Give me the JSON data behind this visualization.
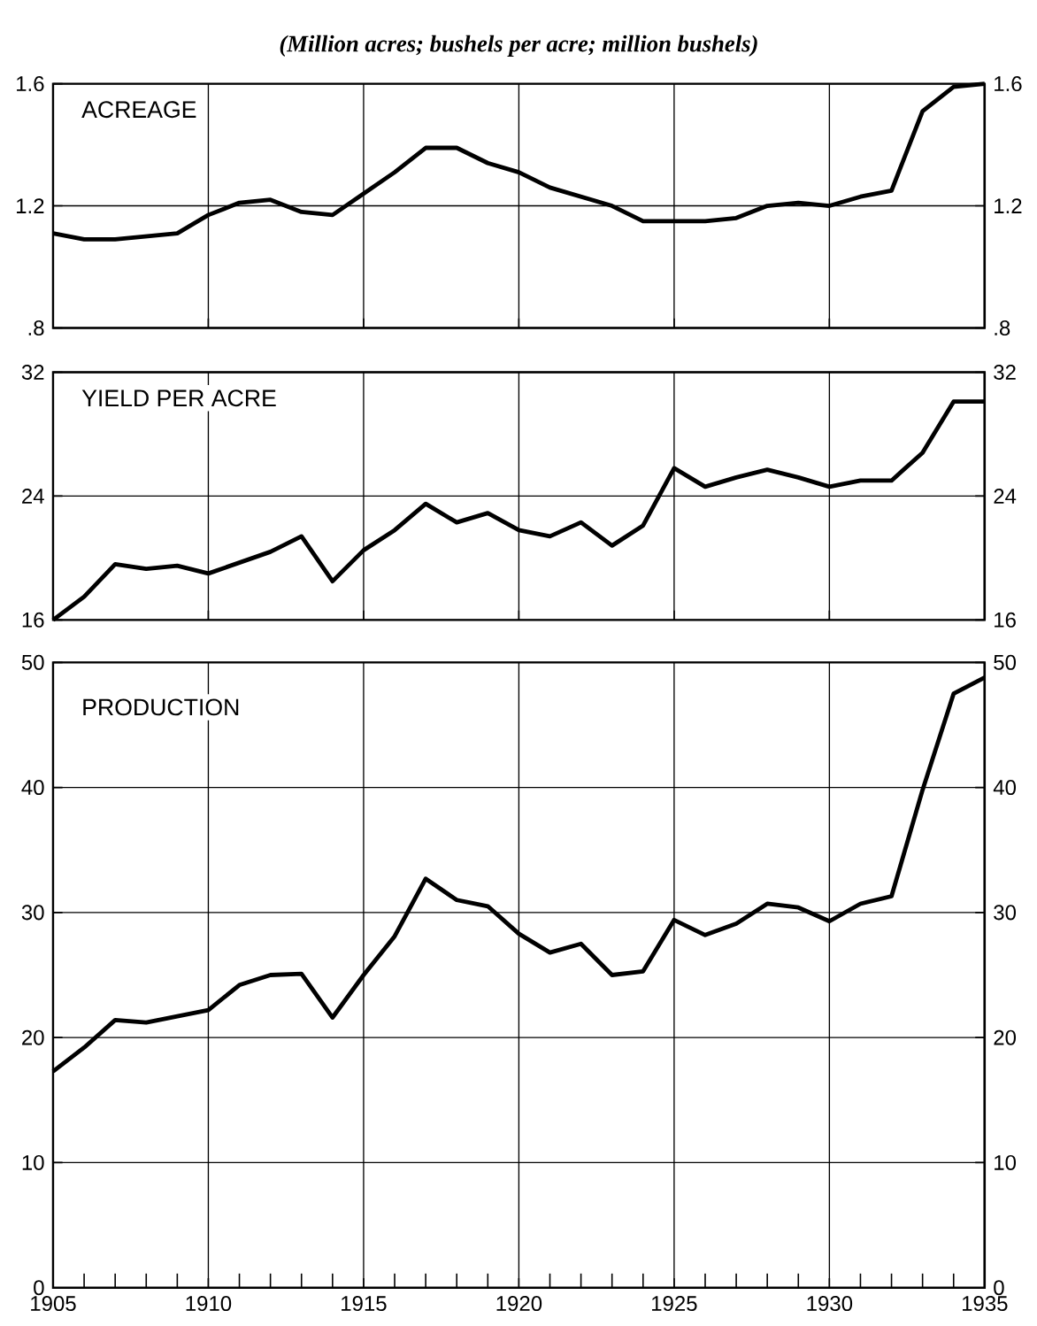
{
  "chart_data": [
    {
      "type": "line",
      "title": "ACREAGE",
      "annotations": [
        "(Million acres; bushels per acre; million bushels)"
      ],
      "x": [
        1905,
        1906,
        1907,
        1908,
        1909,
        1910,
        1911,
        1912,
        1913,
        1914,
        1915,
        1916,
        1917,
        1918,
        1919,
        1920,
        1921,
        1922,
        1923,
        1924,
        1925,
        1926,
        1927,
        1928,
        1929,
        1930,
        1931,
        1932,
        1933,
        1934,
        1935
      ],
      "series": [
        {
          "color": "#000000",
          "values": [
            1.11,
            1.09,
            1.09,
            1.1,
            1.11,
            1.17,
            1.21,
            1.22,
            1.18,
            1.17,
            1.24,
            1.31,
            1.39,
            1.39,
            1.34,
            1.31,
            1.26,
            1.23,
            1.2,
            1.15,
            1.15,
            1.15,
            1.16,
            1.2,
            1.21,
            1.2,
            1.23,
            1.25,
            1.51,
            1.59,
            1.6
          ]
        }
      ],
      "xlim": [
        1905,
        1935
      ],
      "xticks": [
        1905,
        1910,
        1915,
        1920,
        1925,
        1930,
        1935
      ],
      "ylim": [
        0.8,
        1.6
      ],
      "yticks": [
        {
          "value": 0.8,
          "label": ".8"
        },
        1.2,
        1.6
      ],
      "y2lim": [
        0.8,
        1.6
      ],
      "y2ticks": [
        {
          "value": 0.8,
          "label": ".8"
        },
        1.2,
        1.6
      ],
      "grid": true,
      "tick_labels": "y"
    },
    {
      "type": "line",
      "title": "YIELD PER ACRE",
      "x": [
        1905,
        1906,
        1907,
        1908,
        1909,
        1910,
        1911,
        1912,
        1913,
        1914,
        1915,
        1916,
        1917,
        1918,
        1919,
        1920,
        1921,
        1922,
        1923,
        1924,
        1925,
        1926,
        1927,
        1928,
        1929,
        1930,
        1931,
        1932,
        1933,
        1934,
        1935
      ],
      "series": [
        {
          "color": "#000000",
          "values": [
            16.0,
            17.5,
            19.6,
            19.3,
            19.5,
            19.0,
            19.7,
            20.4,
            21.4,
            18.5,
            20.5,
            21.8,
            23.5,
            22.3,
            22.9,
            21.8,
            21.4,
            22.3,
            20.8,
            22.1,
            25.8,
            24.6,
            25.2,
            25.7,
            25.2,
            24.6,
            25.0,
            25.0,
            26.8,
            30.1,
            30.1
          ]
        }
      ],
      "xlim": [
        1905,
        1935
      ],
      "xticks": [
        1905,
        1910,
        1915,
        1920,
        1925,
        1930,
        1935
      ],
      "ylim": [
        16,
        32
      ],
      "yticks": [
        16,
        24,
        32
      ],
      "y2lim": [
        16,
        32
      ],
      "y2ticks": [
        16,
        24,
        32
      ],
      "grid": true,
      "tick_labels": "y"
    },
    {
      "type": "line",
      "title": "PRODUCTION",
      "x": [
        1905,
        1906,
        1907,
        1908,
        1909,
        1910,
        1911,
        1912,
        1913,
        1914,
        1915,
        1916,
        1917,
        1918,
        1919,
        1920,
        1921,
        1922,
        1923,
        1924,
        1925,
        1926,
        1927,
        1928,
        1929,
        1930,
        1931,
        1932,
        1933,
        1934,
        1935
      ],
      "series": [
        {
          "color": "#000000",
          "values": [
            17.3,
            19.2,
            21.4,
            21.2,
            21.7,
            22.2,
            24.2,
            25.0,
            25.1,
            21.6,
            25.0,
            28.1,
            32.7,
            31.0,
            30.5,
            28.3,
            26.8,
            27.5,
            25.0,
            25.3,
            29.4,
            28.2,
            29.1,
            30.7,
            30.4,
            29.3,
            30.7,
            31.3,
            39.8,
            47.5,
            48.8
          ]
        }
      ],
      "xlim": [
        1905,
        1935
      ],
      "xticks": [
        1905,
        {
          "value": 1906,
          "label": null
        },
        {
          "value": 1907,
          "label": null
        },
        {
          "value": 1908,
          "label": null
        },
        {
          "value": 1909,
          "label": null
        },
        1910,
        {
          "value": 1911,
          "label": null
        },
        {
          "value": 1912,
          "label": null
        },
        {
          "value": 1913,
          "label": null
        },
        {
          "value": 1914,
          "label": null
        },
        1915,
        {
          "value": 1916,
          "label": null
        },
        {
          "value": 1917,
          "label": null
        },
        {
          "value": 1918,
          "label": null
        },
        {
          "value": 1919,
          "label": null
        },
        1920,
        {
          "value": 1921,
          "label": null
        },
        {
          "value": 1922,
          "label": null
        },
        {
          "value": 1923,
          "label": null
        },
        {
          "value": 1924,
          "label": null
        },
        1925,
        {
          "value": 1926,
          "label": null
        },
        {
          "value": 1927,
          "label": null
        },
        {
          "value": 1928,
          "label": null
        },
        {
          "value": 1929,
          "label": null
        },
        1930,
        {
          "value": 1931,
          "label": null
        },
        {
          "value": 1932,
          "label": null
        },
        {
          "value": 1933,
          "label": null
        },
        {
          "value": 1934,
          "label": null
        },
        1935
      ],
      "ylim": [
        0,
        50
      ],
      "yticks": [
        0,
        10,
        20,
        30,
        40,
        50
      ],
      "y2lim": [
        0,
        50
      ],
      "y2ticks": [
        0,
        10,
        20,
        30,
        40,
        50
      ],
      "grid": true
    }
  ]
}
